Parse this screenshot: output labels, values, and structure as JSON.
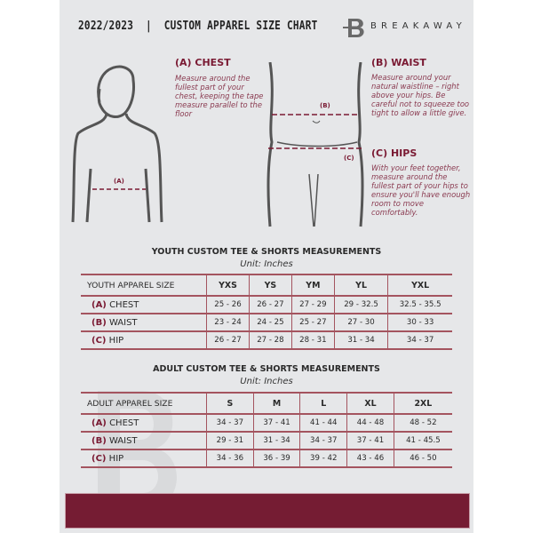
{
  "header": {
    "title": "2022/2023  |  CUSTOM APPAREL SIZE CHART",
    "brand": "BREAKAWAY"
  },
  "measures": {
    "chest": {
      "title": "(A) CHEST",
      "desc": "Measure around the fullest part of your chest, keeping the tape measure parallel to the floor",
      "marker": "(A)"
    },
    "waist": {
      "title": "(B) WAIST",
      "desc": "Measure around your natural waistline – right above your hips. Be careful not to squeeze too tight to allow a little give.",
      "marker": "(B)"
    },
    "hips": {
      "title": "(C) HIPS",
      "desc": "With your feet together, measure around the fullest part of your hips to ensure you'll have enough room to move comfortably.",
      "marker": "(C)"
    }
  },
  "youth": {
    "title": "YOUTH CUSTOM TEE & SHORTS MEASUREMENTS",
    "unit": "Unit: Inches",
    "header": [
      "YOUTH APPAREL SIZE",
      "YXS",
      "YS",
      "YM",
      "YL",
      "YXL"
    ],
    "rows": [
      {
        "code": "(A)",
        "name": "CHEST",
        "values": [
          "25 - 26",
          "26 - 27",
          "27 - 29",
          "29 - 32.5",
          "32.5 - 35.5"
        ]
      },
      {
        "code": "(B)",
        "name": "WAIST",
        "values": [
          "23 - 24",
          "24 - 25",
          "25 - 27",
          "27 - 30",
          "30 - 33"
        ]
      },
      {
        "code": "(C)",
        "name": "HIP",
        "values": [
          "26 - 27",
          "27 - 28",
          "28 - 31",
          "31 - 34",
          "34 - 37"
        ]
      }
    ]
  },
  "adult": {
    "title": "ADULT CUSTOM TEE & SHORTS MEASUREMENTS",
    "unit": "Unit: Inches",
    "header": [
      "ADULT APPAREL SIZE",
      "S",
      "M",
      "L",
      "XL",
      "2XL"
    ],
    "rows": [
      {
        "code": "(A)",
        "name": "CHEST",
        "values": [
          "34 - 37",
          "37 - 41",
          "41 - 44",
          "44 - 48",
          "48 - 52"
        ]
      },
      {
        "code": "(B)",
        "name": "WAIST",
        "values": [
          "29 - 31",
          "31 - 34",
          "34 - 37",
          "37 - 41",
          "41 - 45.5"
        ]
      },
      {
        "code": "(C)",
        "name": "HIP",
        "values": [
          "34 - 36",
          "36 - 39",
          "39 - 42",
          "43 - 46",
          "46 - 50"
        ]
      }
    ]
  },
  "colors": {
    "accent": "#751c33",
    "background": "#e6e7e9"
  }
}
